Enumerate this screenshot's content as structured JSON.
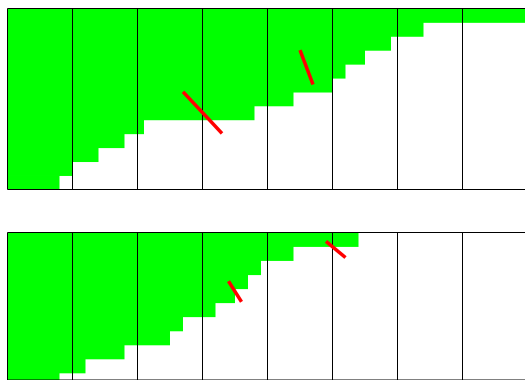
{
  "colors": {
    "fill": "#00ff00",
    "grid": "#000000",
    "marker": "#ff0000",
    "background": "#ffffff"
  },
  "panels": [
    {
      "name": "top-panel",
      "grid_columns": 8,
      "steps": [
        {
          "end": 8.0,
          "fill": 1.0
        },
        {
          "end": 6.4,
          "fill": 0.923
        },
        {
          "end": 5.9,
          "fill": 0.846
        },
        {
          "end": 5.5,
          "fill": 0.769
        },
        {
          "end": 5.2,
          "fill": 0.692
        },
        {
          "end": 5.0,
          "fill": 0.615
        },
        {
          "end": 4.4,
          "fill": 0.538
        },
        {
          "end": 3.8,
          "fill": 0.462
        },
        {
          "end": 2.1,
          "fill": 0.385
        },
        {
          "end": 1.8,
          "fill": 0.308
        },
        {
          "end": 1.4,
          "fill": 0.231
        },
        {
          "end": 1.0,
          "fill": 0.154
        },
        {
          "end": 0.8,
          "fill": 0.077
        }
      ],
      "markers": [
        {
          "from": [
            2.7,
            0.54
          ],
          "to": [
            3.3,
            0.31
          ]
        },
        {
          "from": [
            4.5,
            0.77
          ],
          "to": [
            4.7,
            0.58
          ]
        }
      ]
    },
    {
      "name": "bottom-panel",
      "grid_columns": 8,
      "steps": [
        {
          "end": 5.4,
          "fill": 1.0
        },
        {
          "end": 4.4,
          "fill": 0.905
        },
        {
          "end": 3.9,
          "fill": 0.81
        },
        {
          "end": 3.7,
          "fill": 0.714
        },
        {
          "end": 3.5,
          "fill": 0.619
        },
        {
          "end": 3.2,
          "fill": 0.524
        },
        {
          "end": 2.7,
          "fill": 0.429
        },
        {
          "end": 2.5,
          "fill": 0.333
        },
        {
          "end": 1.8,
          "fill": 0.238
        },
        {
          "end": 1.2,
          "fill": 0.143
        },
        {
          "end": 0.8,
          "fill": 0.048
        }
      ],
      "markers": [
        {
          "from": [
            3.4,
            0.67
          ],
          "to": [
            3.6,
            0.53
          ]
        },
        {
          "from": [
            4.9,
            0.94
          ],
          "to": [
            5.2,
            0.83
          ]
        }
      ]
    }
  ]
}
